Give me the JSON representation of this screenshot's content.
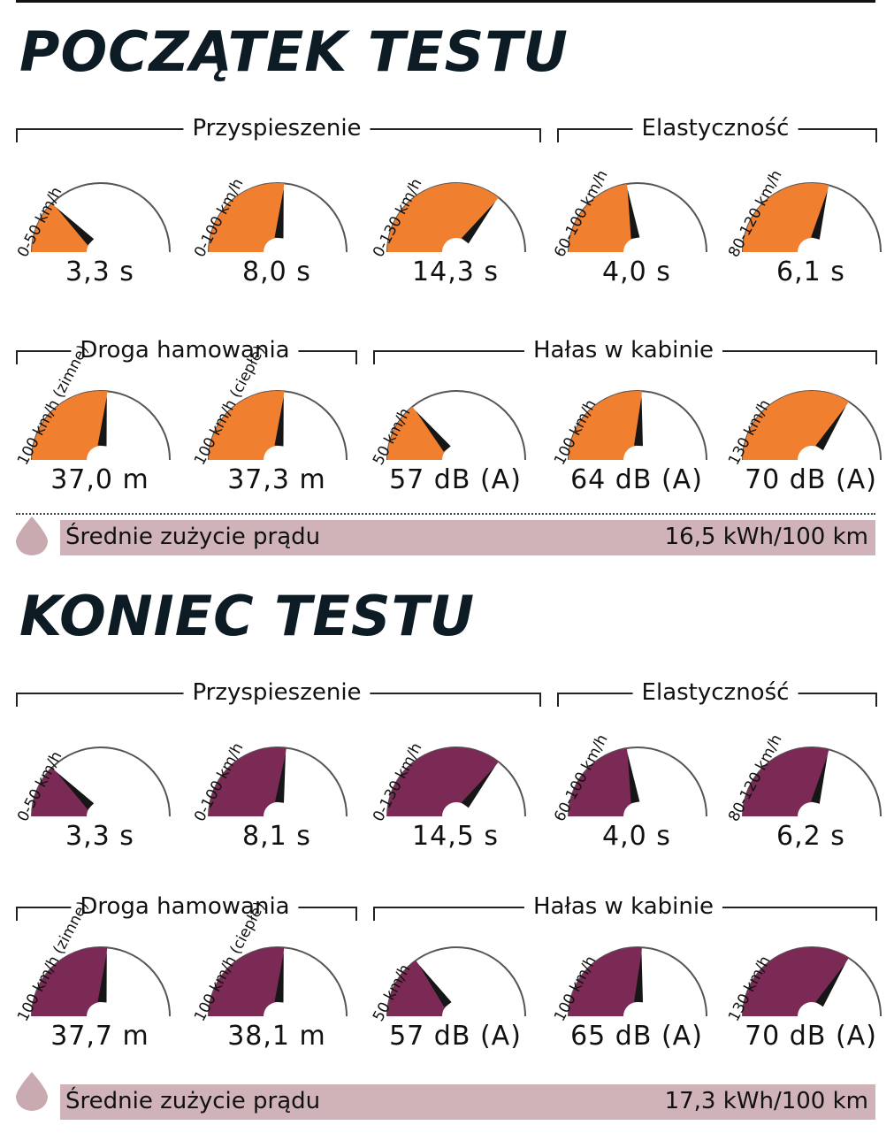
{
  "colors": {
    "start_fill": "#f08030",
    "end_fill": "#7b2a56",
    "consumption_bar": "#cfb3b8",
    "drop": "#c9aab0"
  },
  "sections": [
    {
      "title": "POCZĄTEK TESTU",
      "fill": "#f08030",
      "groups": {
        "acceleration": "Przyspieszenie",
        "elasticity": "Elastyczność",
        "braking": "Droga hamowania",
        "noise": "Hałas w kabinie"
      },
      "row1": [
        {
          "label": "0-50 km/h",
          "value": "3,3 s",
          "level": 0.25
        },
        {
          "label": "0-100 km/h",
          "value": "8,0 s",
          "level": 0.53
        },
        {
          "label": "0-130 km/h",
          "value": "14,3 s",
          "level": 0.71
        },
        {
          "label": "60-100 km/h",
          "value": "4,0 s",
          "level": 0.45
        },
        {
          "label": "80-120 km/h",
          "value": "6,1 s",
          "level": 0.58
        }
      ],
      "row2": [
        {
          "label": "100 km/h (zimne)",
          "value": "37,0 m",
          "level": 0.53
        },
        {
          "label": "100 km/h (ciepłe)",
          "value": "37,3 m",
          "level": 0.53
        },
        {
          "label": "50 km/h",
          "value": "57 dB (A)",
          "level": 0.28
        },
        {
          "label": "100 km/h",
          "value": "64 dB (A)",
          "level": 0.52
        },
        {
          "label": "130 km/h",
          "value": "70 dB (A)",
          "level": 0.68
        }
      ],
      "consumption": {
        "label": "Średnie zużycie prądu",
        "value": "16,5 kWh/100 km"
      }
    },
    {
      "title": "KONIEC TESTU",
      "fill": "#7b2a56",
      "groups": {
        "acceleration": "Przyspieszenie",
        "elasticity": "Elastyczność",
        "braking": "Droga hamowania",
        "noise": "Hałas w kabinie"
      },
      "row1": [
        {
          "label": "0-50 km/h",
          "value": "3,3 s",
          "level": 0.25
        },
        {
          "label": "0-100 km/h",
          "value": "8,1 s",
          "level": 0.54
        },
        {
          "label": "0-130 km/h",
          "value": "14,5 s",
          "level": 0.71
        },
        {
          "label": "60-100 km/h",
          "value": "4,0 s",
          "level": 0.45
        },
        {
          "label": "80-120 km/h",
          "value": "6,2 s",
          "level": 0.58
        }
      ],
      "row2": [
        {
          "label": "100 km/h (zimne)",
          "value": "37,7 m",
          "level": 0.53
        },
        {
          "label": "100 km/h (ciepłe)",
          "value": "38,1 m",
          "level": 0.53
        },
        {
          "label": "50 km/h",
          "value": "57 dB (A)",
          "level": 0.3
        },
        {
          "label": "100 km/h",
          "value": "65 dB (A)",
          "level": 0.52
        },
        {
          "label": "130 km/h",
          "value": "70 dB (A)",
          "level": 0.68
        }
      ],
      "consumption": {
        "label": "Średnie zużycie prądu",
        "value": "17,3 kWh/100 km"
      }
    }
  ]
}
